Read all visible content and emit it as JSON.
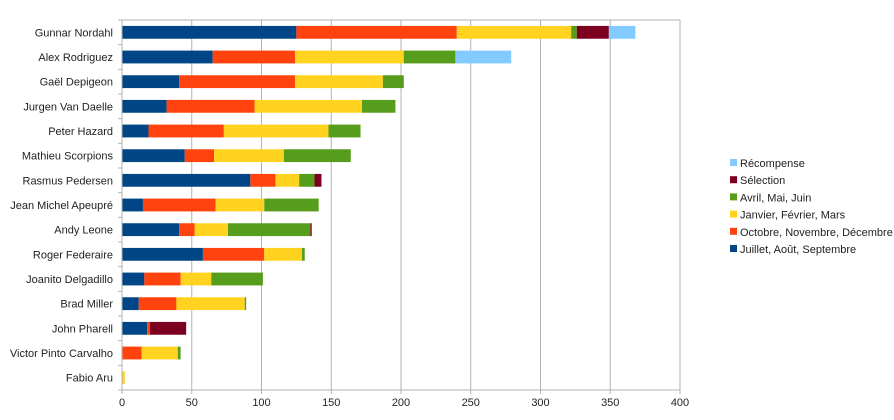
{
  "chart_data": {
    "type": "bar",
    "orientation": "horizontal",
    "stacked": true,
    "categories": [
      "Gunnar Nordahl",
      "Alex Rodriguez",
      "Gaël Depigeon",
      "Jurgen Van Daelle",
      "Peter Hazard",
      "Mathieu Scorpions",
      "Rasmus Pedersen",
      "Jean Michel Apeupré",
      "Andy Leone",
      "Roger Federaire",
      "Joanito Delgadillo",
      "Brad Miller",
      "John Pharell",
      "Victor Pinto Carvalho",
      "Fabio Aru"
    ],
    "series": [
      {
        "name": "Juillet, Août, Septembre",
        "color": "#004586",
        "values": [
          125,
          65,
          41,
          32,
          19,
          45,
          92,
          15,
          41,
          58,
          16,
          12,
          18,
          0,
          0
        ]
      },
      {
        "name": "Octobre, Novembre, Décembre",
        "color": "#ff420e",
        "values": [
          115,
          59,
          83,
          63,
          54,
          21,
          18,
          52,
          11,
          44,
          26,
          27,
          2,
          14,
          0
        ]
      },
      {
        "name": "Janvier, Février, Mars",
        "color": "#ffd320",
        "values": [
          82,
          78,
          63,
          77,
          75,
          50,
          17,
          35,
          24,
          27,
          22,
          49,
          0,
          26,
          2
        ]
      },
      {
        "name": "Avril, Mai, Juin",
        "color": "#579d1c",
        "values": [
          4,
          37,
          15,
          24,
          23,
          48,
          11,
          39,
          59,
          2,
          37,
          1,
          0,
          2,
          0
        ]
      },
      {
        "name": "Sélection",
        "color": "#7e0021",
        "values": [
          23,
          0,
          0,
          0,
          0,
          0,
          5,
          0,
          1,
          0,
          0,
          0,
          26,
          0,
          0
        ]
      },
      {
        "name": "Récompense",
        "color": "#83caff",
        "values": [
          19,
          40,
          0,
          0,
          0,
          0,
          0,
          0,
          0,
          0,
          0,
          0,
          0,
          0,
          0
        ]
      }
    ],
    "xlim": [
      0,
      400
    ],
    "xticks": [
      0,
      50,
      100,
      150,
      200,
      250,
      300,
      350,
      400
    ],
    "grid": true,
    "legend_position": "right",
    "legend_order": [
      "Récompense",
      "Sélection",
      "Avril, Mai, Juin",
      "Janvier, Février, Mars",
      "Octobre, Novembre, Décembre",
      "Juillet, Août, Septembre"
    ],
    "title": "",
    "xlabel": "",
    "ylabel": ""
  }
}
